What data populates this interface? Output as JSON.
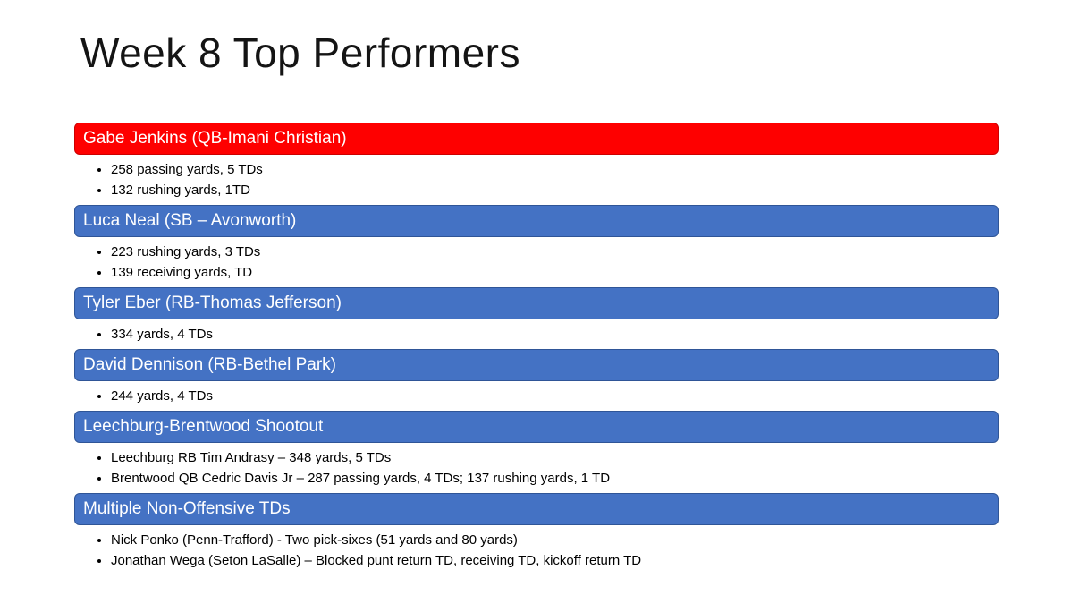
{
  "title": "Week 8 Top Performers",
  "palette": {
    "red": {
      "fill": "#FE0000",
      "border": "#CC0000"
    },
    "blue": {
      "fill": "#4472C4",
      "border": "#2F5597"
    }
  },
  "sections": [
    {
      "header": "Gabe Jenkins (QB-Imani Christian)",
      "accent": "red",
      "bullets": [
        "258 passing yards, 5 TDs",
        "132 rushing yards, 1TD"
      ]
    },
    {
      "header": "Luca Neal (SB – Avonworth)",
      "accent": "blue",
      "bullets": [
        "223 rushing yards, 3 TDs",
        "139 receiving yards, TD"
      ]
    },
    {
      "header": "Tyler Eber (RB-Thomas Jefferson)",
      "accent": "blue",
      "bullets": [
        "334 yards, 4 TDs"
      ]
    },
    {
      "header": "David Dennison (RB-Bethel Park)",
      "accent": "blue",
      "bullets": [
        "244 yards, 4 TDs"
      ]
    },
    {
      "header": "Leechburg-Brentwood Shootout",
      "accent": "blue",
      "bullets": [
        "Leechburg RB Tim Andrasy – 348 yards, 5 TDs",
        "Brentwood QB Cedric Davis Jr – 287 passing yards, 4 TDs; 137 rushing yards, 1 TD"
      ]
    },
    {
      "header": "Multiple Non-Offensive TDs",
      "accent": "blue",
      "bullets": [
        "Nick Ponko (Penn-Trafford) - Two pick-sixes (51 yards and 80 yards)",
        "Jonathan Wega (Seton LaSalle) – Blocked punt return TD, receiving TD, kickoff return TD"
      ]
    }
  ]
}
